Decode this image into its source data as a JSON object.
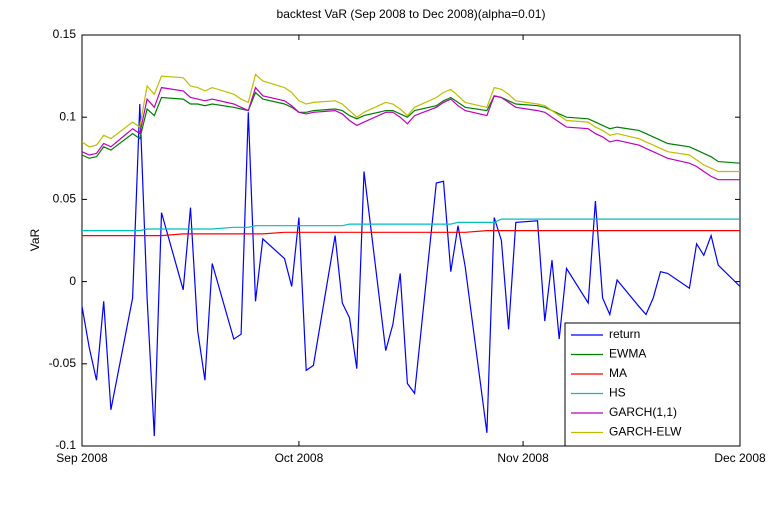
{
  "chart_data": {
    "type": "line",
    "title": "backtest VaR (Sep 2008 to Dec 2008)(alpha=0.01)",
    "y_label": "VaR",
    "x": [
      0,
      1,
      2,
      3,
      4,
      7,
      8,
      9,
      10,
      11,
      14,
      15,
      16,
      17,
      18,
      21,
      22,
      23,
      24,
      25,
      28,
      29,
      30,
      31,
      32,
      35,
      36,
      37,
      38,
      39,
      42,
      43,
      44,
      45,
      46,
      49,
      50,
      51,
      52,
      53,
      56,
      57,
      58,
      59,
      60,
      63,
      64,
      65,
      66,
      67,
      70,
      71,
      72,
      73,
      74,
      77,
      78,
      79,
      80,
      81,
      84,
      85,
      86,
      87,
      88,
      91
    ],
    "xlim": [
      0,
      91
    ],
    "xticks": [
      {
        "value": 0,
        "label": "Sep 2008"
      },
      {
        "value": 30,
        "label": "Oct 2008"
      },
      {
        "value": 61,
        "label": "Nov 2008"
      },
      {
        "value": 91,
        "label": "Dec 2008"
      }
    ],
    "ylim": [
      -0.1,
      0.15
    ],
    "yticks": [
      -0.1,
      -0.05,
      0,
      0.05,
      0.1,
      0.15
    ],
    "legend": "lower right",
    "series": [
      {
        "name": "return",
        "color": "#0000ff",
        "values": [
          -0.015,
          -0.04,
          -0.06,
          -0.012,
          -0.078,
          -0.01,
          0.108,
          -0.01,
          -0.094,
          0.042,
          -0.005,
          0.045,
          -0.03,
          -0.06,
          0.011,
          -0.035,
          -0.032,
          0.103,
          -0.012,
          0.026,
          0.014,
          -0.003,
          0.039,
          -0.054,
          -0.051,
          0.028,
          -0.013,
          -0.022,
          -0.053,
          0.067,
          -0.042,
          -0.026,
          0.005,
          -0.062,
          -0.068,
          0.06,
          0.061,
          0.006,
          0.034,
          0.009,
          -0.092,
          0.039,
          0.025,
          -0.029,
          0.036,
          0.037,
          -0.024,
          0.013,
          -0.035,
          0.008,
          -0.013,
          0.049,
          -0.01,
          -0.02,
          0.001,
          -0.015,
          -0.02,
          -0.01,
          0.006,
          0.005,
          -0.004,
          0.023,
          0.016,
          0.028,
          0.01,
          -0.003
        ]
      },
      {
        "name": "EWMA",
        "color": "#008000",
        "values": [
          0.077,
          0.075,
          0.076,
          0.082,
          0.08,
          0.09,
          0.087,
          0.105,
          0.101,
          0.112,
          0.111,
          0.108,
          0.108,
          0.107,
          0.108,
          0.106,
          0.105,
          0.104,
          0.115,
          0.111,
          0.108,
          0.106,
          0.103,
          0.103,
          0.104,
          0.105,
          0.104,
          0.101,
          0.099,
          0.101,
          0.104,
          0.104,
          0.102,
          0.1,
          0.104,
          0.107,
          0.11,
          0.112,
          0.109,
          0.106,
          0.104,
          0.113,
          0.112,
          0.11,
          0.108,
          0.107,
          0.106,
          0.104,
          0.102,
          0.1,
          0.099,
          0.097,
          0.095,
          0.093,
          0.094,
          0.092,
          0.09,
          0.088,
          0.086,
          0.084,
          0.082,
          0.08,
          0.078,
          0.076,
          0.073,
          0.072
        ]
      },
      {
        "name": "MA",
        "color": "#ff0000",
        "values": [
          0.028,
          0.028,
          0.028,
          0.028,
          0.028,
          0.028,
          0.028,
          0.028,
          0.028,
          0.028,
          0.029,
          0.029,
          0.029,
          0.029,
          0.029,
          0.029,
          0.029,
          0.029,
          0.029,
          0.029,
          0.03,
          0.03,
          0.03,
          0.03,
          0.03,
          0.03,
          0.03,
          0.03,
          0.03,
          0.03,
          0.03,
          0.03,
          0.03,
          0.03,
          0.03,
          0.03,
          0.03,
          0.03,
          0.03,
          0.03,
          0.031,
          0.031,
          0.031,
          0.031,
          0.031,
          0.031,
          0.031,
          0.031,
          0.031,
          0.031,
          0.031,
          0.031,
          0.031,
          0.031,
          0.031,
          0.031,
          0.031,
          0.031,
          0.031,
          0.031,
          0.031,
          0.031,
          0.031,
          0.031,
          0.031,
          0.031
        ]
      },
      {
        "name": "HS",
        "color": "#00bfbf",
        "values": [
          0.031,
          0.031,
          0.031,
          0.031,
          0.031,
          0.031,
          0.031,
          0.032,
          0.032,
          0.032,
          0.032,
          0.032,
          0.032,
          0.032,
          0.032,
          0.033,
          0.033,
          0.033,
          0.034,
          0.034,
          0.034,
          0.034,
          0.034,
          0.034,
          0.034,
          0.034,
          0.034,
          0.035,
          0.035,
          0.035,
          0.035,
          0.035,
          0.035,
          0.035,
          0.035,
          0.035,
          0.035,
          0.035,
          0.036,
          0.036,
          0.036,
          0.036,
          0.038,
          0.038,
          0.038,
          0.038,
          0.038,
          0.038,
          0.038,
          0.038,
          0.038,
          0.038,
          0.038,
          0.038,
          0.038,
          0.038,
          0.038,
          0.038,
          0.038,
          0.038,
          0.038,
          0.038,
          0.038,
          0.038,
          0.038,
          0.038
        ]
      },
      {
        "name": "GARCH(1,1)",
        "color": "#bf00bf",
        "values": [
          0.079,
          0.077,
          0.078,
          0.084,
          0.082,
          0.093,
          0.09,
          0.111,
          0.106,
          0.118,
          0.116,
          0.112,
          0.111,
          0.11,
          0.111,
          0.108,
          0.106,
          0.104,
          0.118,
          0.113,
          0.11,
          0.107,
          0.103,
          0.102,
          0.103,
          0.104,
          0.102,
          0.098,
          0.095,
          0.097,
          0.103,
          0.103,
          0.1,
          0.096,
          0.101,
          0.106,
          0.109,
          0.111,
          0.107,
          0.104,
          0.101,
          0.113,
          0.112,
          0.109,
          0.106,
          0.104,
          0.103,
          0.1,
          0.097,
          0.094,
          0.093,
          0.09,
          0.088,
          0.085,
          0.086,
          0.083,
          0.081,
          0.079,
          0.077,
          0.075,
          0.072,
          0.07,
          0.067,
          0.064,
          0.062,
          0.062
        ]
      },
      {
        "name": "GARCH-ELW",
        "color": "#bfbf00",
        "values": [
          0.085,
          0.082,
          0.083,
          0.089,
          0.087,
          0.097,
          0.094,
          0.119,
          0.114,
          0.125,
          0.124,
          0.119,
          0.118,
          0.116,
          0.118,
          0.114,
          0.111,
          0.109,
          0.126,
          0.122,
          0.118,
          0.115,
          0.11,
          0.108,
          0.109,
          0.11,
          0.108,
          0.104,
          0.1,
          0.103,
          0.109,
          0.108,
          0.105,
          0.101,
          0.106,
          0.112,
          0.115,
          0.117,
          0.113,
          0.109,
          0.106,
          0.118,
          0.117,
          0.114,
          0.11,
          0.108,
          0.107,
          0.104,
          0.101,
          0.098,
          0.097,
          0.094,
          0.092,
          0.089,
          0.09,
          0.087,
          0.085,
          0.083,
          0.081,
          0.079,
          0.077,
          0.074,
          0.071,
          0.069,
          0.067,
          0.067
        ]
      }
    ]
  }
}
